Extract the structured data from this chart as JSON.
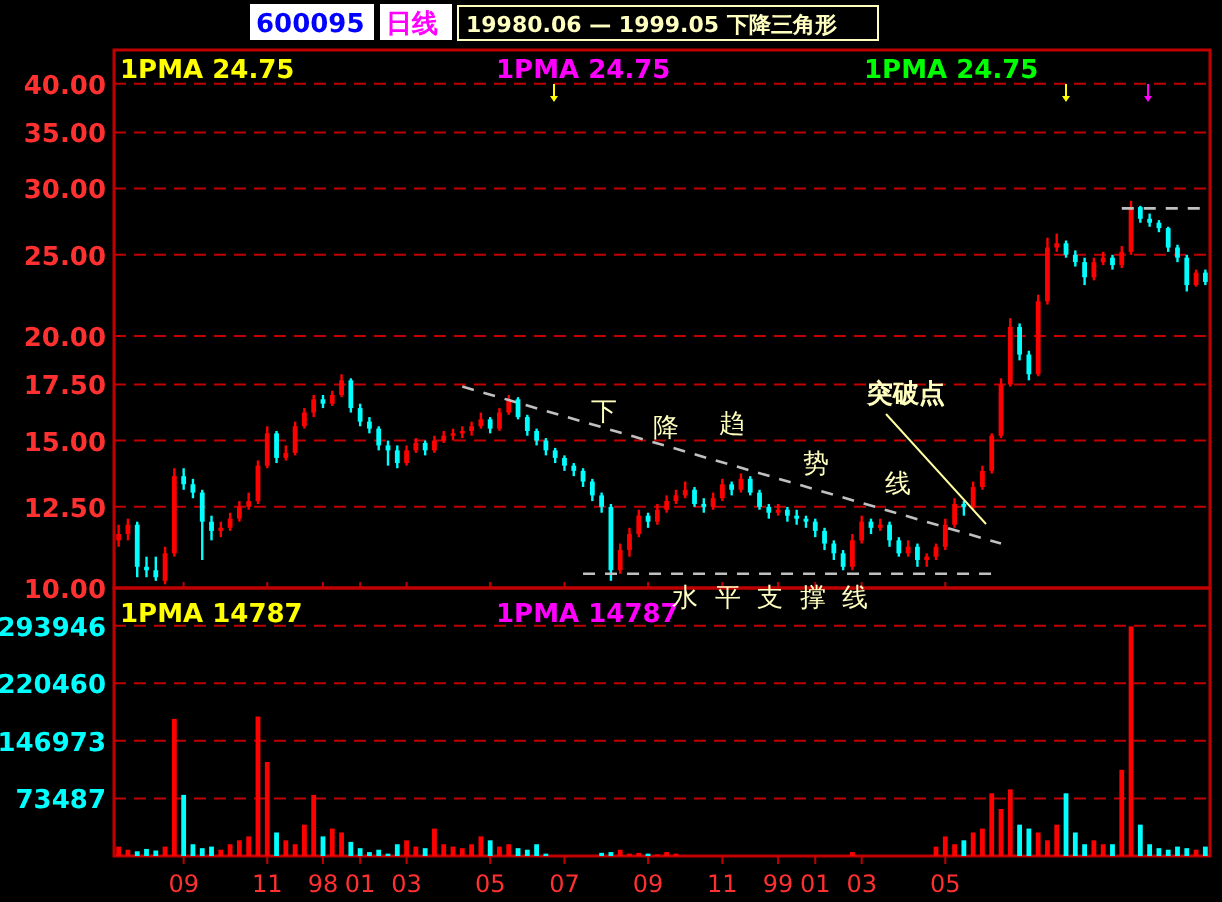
{
  "chart_data": [
    {
      "type": "candlestick",
      "title": "19980.06 — 1999.05 下降三角形",
      "log": true,
      "grid": "y",
      "tick_labels": "y",
      "ylim": [
        10,
        43.9
      ],
      "yticks": [
        {
          "value": 10,
          "label": "10.00"
        },
        {
          "value": 12.5,
          "label": "12.50"
        },
        {
          "value": 15,
          "label": "15.00"
        },
        {
          "value": 17.5,
          "label": "17.50"
        },
        {
          "value": 20,
          "label": "20.00"
        },
        {
          "value": 25,
          "label": "25.00"
        },
        {
          "value": 30,
          "label": "30.00"
        },
        {
          "value": 35,
          "label": "35.00"
        },
        {
          "value": 40,
          "label": "40.00"
        }
      ],
      "categories": [
        null,
        null,
        null,
        null,
        null,
        null,
        null,
        "09",
        null,
        null,
        null,
        null,
        null,
        null,
        null,
        null,
        "11",
        null,
        null,
        null,
        null,
        null,
        "98",
        null,
        null,
        null,
        "01",
        null,
        null,
        null,
        null,
        "03",
        null,
        null,
        null,
        null,
        null,
        null,
        null,
        null,
        "05",
        null,
        null,
        null,
        null,
        null,
        null,
        null,
        "07",
        null,
        null,
        null,
        null,
        null,
        null,
        null,
        null,
        "09",
        null,
        null,
        null,
        null,
        null,
        null,
        null,
        "11",
        null,
        null,
        null,
        null,
        null,
        "99",
        null,
        null,
        null,
        "01",
        null,
        null,
        null,
        null,
        "03",
        null,
        null,
        null,
        null,
        null,
        null,
        null,
        null,
        "05",
        null,
        null,
        null,
        null,
        null,
        null,
        null,
        null,
        null,
        null,
        null,
        null,
        null,
        null,
        null,
        null,
        null,
        null,
        null,
        null,
        null,
        null,
        null,
        null,
        null,
        null,
        null,
        null
      ],
      "ohlc": [
        [
          11.4,
          11.9,
          11.2,
          11.6
        ],
        [
          11.6,
          12.1,
          11.4,
          11.9
        ],
        [
          11.9,
          12.0,
          10.3,
          10.6
        ],
        [
          10.6,
          10.9,
          10.3,
          10.5
        ],
        [
          10.5,
          10.9,
          10.2,
          10.3
        ],
        [
          10.2,
          11.2,
          10.1,
          11.0
        ],
        [
          11.0,
          13.9,
          10.9,
          13.6
        ],
        [
          13.6,
          13.9,
          13.1,
          13.3
        ],
        [
          13.3,
          13.5,
          12.8,
          13.0
        ],
        [
          13.0,
          13.1,
          10.8,
          12.0
        ],
        [
          12.0,
          12.2,
          11.4,
          11.7
        ],
        [
          11.7,
          12.0,
          11.5,
          11.8
        ],
        [
          11.8,
          12.3,
          11.7,
          12.1
        ],
        [
          12.1,
          12.7,
          12.0,
          12.5
        ],
        [
          12.5,
          13.0,
          12.4,
          12.7
        ],
        [
          12.7,
          14.2,
          12.6,
          14.0
        ],
        [
          14.0,
          15.6,
          13.9,
          15.3
        ],
        [
          15.3,
          15.4,
          14.1,
          14.3
        ],
        [
          14.3,
          14.8,
          14.2,
          14.5
        ],
        [
          14.5,
          15.8,
          14.4,
          15.6
        ],
        [
          15.6,
          16.4,
          15.5,
          16.2
        ],
        [
          16.2,
          17.0,
          16.0,
          16.8
        ],
        [
          16.8,
          17.0,
          16.4,
          16.6
        ],
        [
          16.6,
          17.2,
          16.5,
          17.0
        ],
        [
          17.0,
          18.0,
          16.9,
          17.7
        ],
        [
          17.7,
          17.8,
          16.2,
          16.4
        ],
        [
          16.4,
          16.6,
          15.6,
          15.8
        ],
        [
          15.8,
          16.0,
          15.3,
          15.5
        ],
        [
          15.5,
          15.6,
          14.6,
          14.8
        ],
        [
          14.8,
          15.0,
          14.0,
          14.6
        ],
        [
          14.6,
          14.8,
          13.9,
          14.1
        ],
        [
          14.1,
          14.8,
          14.0,
          14.6
        ],
        [
          14.6,
          15.1,
          14.5,
          14.9
        ],
        [
          14.9,
          15.0,
          14.4,
          14.6
        ],
        [
          14.6,
          15.2,
          14.5,
          15.0
        ],
        [
          15.0,
          15.4,
          14.9,
          15.2
        ],
        [
          15.2,
          15.5,
          15.0,
          15.3
        ],
        [
          15.3,
          15.6,
          15.1,
          15.4
        ],
        [
          15.4,
          15.8,
          15.2,
          15.6
        ],
        [
          15.6,
          16.2,
          15.5,
          15.9
        ],
        [
          15.9,
          16.0,
          15.3,
          15.5
        ],
        [
          15.5,
          16.4,
          15.4,
          16.2
        ],
        [
          16.2,
          17.0,
          16.1,
          16.8
        ],
        [
          16.8,
          16.9,
          15.9,
          16.0
        ],
        [
          16.0,
          16.1,
          15.2,
          15.4
        ],
        [
          15.4,
          15.5,
          14.8,
          15.0
        ],
        [
          15.0,
          15.1,
          14.4,
          14.6
        ],
        [
          14.6,
          14.7,
          14.1,
          14.3
        ],
        [
          14.3,
          14.4,
          13.8,
          14.0
        ],
        [
          14.0,
          14.1,
          13.6,
          13.8
        ],
        [
          13.8,
          13.9,
          13.2,
          13.4
        ],
        [
          13.4,
          13.5,
          12.7,
          12.9
        ],
        [
          12.9,
          13.0,
          12.3,
          12.5
        ],
        [
          12.5,
          12.6,
          10.2,
          10.5
        ],
        [
          10.5,
          11.3,
          10.4,
          11.1
        ],
        [
          11.1,
          11.8,
          10.9,
          11.6
        ],
        [
          11.6,
          12.4,
          11.5,
          12.2
        ],
        [
          12.2,
          12.3,
          11.8,
          12.0
        ],
        [
          12.0,
          12.6,
          11.9,
          12.4
        ],
        [
          12.4,
          12.9,
          12.3,
          12.7
        ],
        [
          12.7,
          13.1,
          12.6,
          12.9
        ],
        [
          12.9,
          13.4,
          12.8,
          13.1
        ],
        [
          13.1,
          13.2,
          12.5,
          12.6
        ],
        [
          12.6,
          12.8,
          12.3,
          12.5
        ],
        [
          12.5,
          13.0,
          12.4,
          12.8
        ],
        [
          12.8,
          13.5,
          12.7,
          13.3
        ],
        [
          13.3,
          13.4,
          12.9,
          13.1
        ],
        [
          13.1,
          13.7,
          13.0,
          13.5
        ],
        [
          13.5,
          13.6,
          12.9,
          13.0
        ],
        [
          13.0,
          13.1,
          12.4,
          12.5
        ],
        [
          12.5,
          12.6,
          12.1,
          12.3
        ],
        [
          12.3,
          12.6,
          12.2,
          12.4
        ],
        [
          12.4,
          12.5,
          12.0,
          12.2
        ],
        [
          12.2,
          12.4,
          11.9,
          12.1
        ],
        [
          12.1,
          12.2,
          11.8,
          12.0
        ],
        [
          12.0,
          12.1,
          11.5,
          11.7
        ],
        [
          11.7,
          11.8,
          11.1,
          11.3
        ],
        [
          11.3,
          11.4,
          10.8,
          11.0
        ],
        [
          11.0,
          11.1,
          10.5,
          10.6
        ],
        [
          10.6,
          11.6,
          10.5,
          11.4
        ],
        [
          11.4,
          12.2,
          11.3,
          12.0
        ],
        [
          12.0,
          12.1,
          11.6,
          11.8
        ],
        [
          11.8,
          12.1,
          11.7,
          11.9
        ],
        [
          11.9,
          12.0,
          11.2,
          11.4
        ],
        [
          11.4,
          11.5,
          10.9,
          11.0
        ],
        [
          11.0,
          11.4,
          10.9,
          11.2
        ],
        [
          11.2,
          11.3,
          10.6,
          10.8
        ],
        [
          10.8,
          11.0,
          10.6,
          10.9
        ],
        [
          10.9,
          11.3,
          10.8,
          11.2
        ],
        [
          11.2,
          12.1,
          11.1,
          11.9
        ],
        [
          11.9,
          12.8,
          11.8,
          12.6
        ],
        [
          12.6,
          12.7,
          12.2,
          12.5
        ],
        [
          12.5,
          13.4,
          12.4,
          13.2
        ],
        [
          13.2,
          14.0,
          13.1,
          13.8
        ],
        [
          13.8,
          15.3,
          13.7,
          15.2
        ],
        [
          15.2,
          17.8,
          15.1,
          17.5
        ],
        [
          17.5,
          21.0,
          17.4,
          20.5
        ],
        [
          20.5,
          20.7,
          18.7,
          19.0
        ],
        [
          19.0,
          19.2,
          17.7,
          18.0
        ],
        [
          18.0,
          22.4,
          17.9,
          22.0
        ],
        [
          22.0,
          26.2,
          21.8,
          25.5
        ],
        [
          25.5,
          26.5,
          25.2,
          25.8
        ],
        [
          25.8,
          26.0,
          24.8,
          25.0
        ],
        [
          25.0,
          25.3,
          24.2,
          24.5
        ],
        [
          24.5,
          24.8,
          23.0,
          23.5
        ],
        [
          23.5,
          24.8,
          23.3,
          24.5
        ],
        [
          24.5,
          25.2,
          24.3,
          24.8
        ],
        [
          24.8,
          25.0,
          24.0,
          24.3
        ],
        [
          24.3,
          25.6,
          24.1,
          25.2
        ],
        [
          25.2,
          29.0,
          25.0,
          28.5
        ],
        [
          28.5,
          28.6,
          27.3,
          27.6
        ],
        [
          27.6,
          28.0,
          27.0,
          27.3
        ],
        [
          27.3,
          27.5,
          26.6,
          26.9
        ],
        [
          26.9,
          27.0,
          25.2,
          25.5
        ],
        [
          25.5,
          25.7,
          24.5,
          24.8
        ],
        [
          24.8,
          25.0,
          22.6,
          23.0
        ],
        [
          23.0,
          24.0,
          22.9,
          23.8
        ],
        [
          23.8,
          24.0,
          23.0,
          23.2
        ]
      ],
      "series": [
        {
          "type": "line",
          "color": "#c0c0c0",
          "line_style": "dashed",
          "values": [
            null,
            null,
            null,
            null,
            null,
            null,
            null,
            null,
            null,
            null,
            null,
            null,
            null,
            null,
            null,
            null,
            null,
            null,
            null,
            null,
            null,
            null,
            null,
            null,
            null,
            null,
            null,
            null,
            null,
            null,
            null,
            null,
            null,
            null,
            null,
            null,
            null,
            17.4,
            null,
            null,
            null,
            null,
            null,
            null,
            null,
            null,
            null,
            null,
            null,
            null,
            null,
            null,
            null,
            null,
            null,
            null,
            null,
            null,
            null,
            null,
            null,
            null,
            null,
            null,
            null,
            null,
            null,
            null,
            null,
            null,
            null,
            null,
            null,
            null,
            null,
            null,
            null,
            null,
            null,
            null,
            null,
            null,
            null,
            null,
            null,
            null,
            null,
            null,
            null,
            null,
            null,
            null,
            null,
            null,
            null,
            11.3,
            null,
            null,
            null,
            null,
            null,
            null,
            null,
            null,
            null,
            null,
            null,
            null,
            null,
            null,
            null,
            null,
            null,
            null,
            null,
            null,
            null,
            null
          ]
        },
        {
          "type": "line",
          "color": "#c0c0c0",
          "line_style": "dashed",
          "values": [
            null,
            null,
            null,
            null,
            null,
            null,
            null,
            null,
            null,
            null,
            null,
            null,
            null,
            null,
            null,
            null,
            null,
            null,
            null,
            null,
            null,
            null,
            null,
            null,
            null,
            null,
            null,
            null,
            null,
            null,
            null,
            null,
            null,
            null,
            null,
            null,
            null,
            null,
            null,
            null,
            null,
            null,
            null,
            null,
            null,
            null,
            null,
            null,
            null,
            null,
            10.4,
            null,
            null,
            null,
            null,
            null,
            null,
            null,
            null,
            null,
            null,
            null,
            null,
            null,
            null,
            null,
            null,
            null,
            null,
            null,
            null,
            null,
            null,
            null,
            null,
            null,
            null,
            null,
            null,
            null,
            null,
            null,
            null,
            null,
            null,
            null,
            null,
            null,
            null,
            null,
            null,
            null,
            null,
            null,
            10.4,
            null,
            null,
            null,
            null,
            null,
            null,
            null,
            null,
            null,
            null,
            null,
            null,
            null,
            null,
            null,
            null,
            null,
            null,
            null,
            null,
            null,
            null,
            null
          ]
        },
        {
          "type": "line",
          "color": "#c0c0c0",
          "line_style": "dashed",
          "values": [
            null,
            null,
            null,
            null,
            null,
            null,
            null,
            null,
            null,
            null,
            null,
            null,
            null,
            null,
            null,
            null,
            null,
            null,
            null,
            null,
            null,
            null,
            null,
            null,
            null,
            null,
            null,
            null,
            null,
            null,
            null,
            null,
            null,
            null,
            null,
            null,
            null,
            null,
            null,
            null,
            null,
            null,
            null,
            null,
            null,
            null,
            null,
            null,
            null,
            null,
            null,
            null,
            null,
            null,
            null,
            null,
            null,
            null,
            null,
            null,
            null,
            null,
            null,
            null,
            null,
            null,
            null,
            null,
            null,
            null,
            null,
            null,
            null,
            null,
            null,
            null,
            null,
            null,
            null,
            null,
            null,
            null,
            null,
            null,
            null,
            null,
            null,
            null,
            null,
            null,
            null,
            null,
            null,
            null,
            null,
            null,
            null,
            null,
            null,
            null,
            null,
            null,
            null,
            null,
            null,
            null,
            null,
            null,
            28.4,
            null,
            null,
            null,
            null,
            null,
            null,
            null,
            null,
            28.4
          ]
        }
      ],
      "annotations": [
        "600095",
        "日线",
        "1PMA 24.75",
        "1PMA 24.75",
        "1PMA 24.75",
        "下",
        "降",
        "趋",
        "势",
        "线",
        "突破点"
      ]
    },
    {
      "type": "bar",
      "grid": "y",
      "ylim": [
        0,
        342000
      ],
      "yticks": [
        73487,
        146973,
        220460,
        293946
      ],
      "categories": [
        null,
        null,
        null,
        null,
        null,
        null,
        null,
        "09",
        null,
        null,
        null,
        null,
        null,
        null,
        null,
        null,
        "11",
        null,
        null,
        null,
        null,
        null,
        "98",
        null,
        null,
        null,
        "01",
        null,
        null,
        null,
        null,
        "03",
        null,
        null,
        null,
        null,
        null,
        null,
        null,
        null,
        "05",
        null,
        null,
        null,
        null,
        null,
        null,
        null,
        "07",
        null,
        null,
        null,
        null,
        null,
        null,
        null,
        null,
        "09",
        null,
        null,
        null,
        null,
        null,
        null,
        null,
        "11",
        null,
        null,
        null,
        null,
        null,
        "99",
        null,
        null,
        null,
        "01",
        null,
        null,
        null,
        null,
        "03",
        null,
        null,
        null,
        null,
        null,
        null,
        null,
        null,
        "05",
        null,
        null,
        null,
        null,
        null,
        null,
        null,
        null,
        null,
        null,
        null,
        null,
        null,
        null,
        null,
        null,
        null,
        null,
        null,
        null,
        null,
        null,
        null,
        null,
        null,
        null,
        null,
        null
      ],
      "values": [
        12000,
        8000,
        6000,
        9000,
        7000,
        12000,
        175000,
        78000,
        15000,
        10000,
        12000,
        8000,
        15000,
        20000,
        25000,
        178000,
        120000,
        30000,
        20000,
        15000,
        40000,
        78000,
        25000,
        35000,
        30000,
        18000,
        10000,
        5000,
        8000,
        3000,
        15000,
        20000,
        12000,
        10000,
        35000,
        15000,
        12000,
        10000,
        15000,
        25000,
        20000,
        12000,
        15000,
        10000,
        8000,
        15000,
        3000,
        0,
        0,
        0,
        0,
        0,
        4000,
        5000,
        8000,
        3000,
        4000,
        3000,
        2000,
        5000,
        3000,
        0,
        0,
        0,
        0,
        0,
        0,
        0,
        0,
        0,
        0,
        0,
        0,
        0,
        0,
        0,
        0,
        0,
        0,
        5000,
        0,
        0,
        0,
        0,
        0,
        0,
        0,
        0,
        12000,
        25000,
        15000,
        20000,
        30000,
        35000,
        80000,
        60000,
        85000,
        40000,
        35000,
        30000,
        20000,
        40000,
        80000,
        30000,
        15000,
        20000,
        15000,
        15000,
        110000,
        293000,
        40000,
        15000,
        10000,
        8000,
        12000,
        10000,
        8000,
        12000
      ],
      "colors": [
        "#ff0000",
        "#ff0000",
        "#00ffff",
        "#00ffff",
        "#00ffff",
        "#ff0000",
        "#ff0000",
        "#00ffff",
        "#00ffff",
        "#00ffff",
        "#00ffff",
        "#ff0000",
        "#ff0000",
        "#ff0000",
        "#ff0000",
        "#ff0000",
        "#ff0000",
        "#00ffff",
        "#ff0000",
        "#ff0000",
        "#ff0000",
        "#ff0000",
        "#00ffff",
        "#ff0000",
        "#ff0000",
        "#00ffff",
        "#00ffff",
        "#00ffff",
        "#00ffff",
        "#00ffff",
        "#00ffff",
        "#ff0000",
        "#ff0000",
        "#00ffff",
        "#ff0000",
        "#ff0000",
        "#ff0000",
        "#ff0000",
        "#ff0000",
        "#ff0000",
        "#00ffff",
        "#ff0000",
        "#ff0000",
        "#00ffff",
        "#00ffff",
        "#00ffff",
        "#00ffff",
        "#00ffff",
        "#00ffff",
        "#00ffff",
        "#00ffff",
        "#00ffff",
        "#00ffff",
        "#00ffff",
        "#ff0000",
        "#ff0000",
        "#ff0000",
        "#00ffff",
        "#ff0000",
        "#ff0000",
        "#ff0000",
        "#ff0000",
        "#00ffff",
        "#00ffff",
        "#ff0000",
        "#ff0000",
        "#00ffff",
        "#ff0000",
        "#00ffff",
        "#00ffff",
        "#00ffff",
        "#ff0000",
        "#00ffff",
        "#00ffff",
        "#00ffff",
        "#00ffff",
        "#00ffff",
        "#00ffff",
        "#00ffff",
        "#ff0000",
        "#ff0000",
        "#00ffff",
        "#ff0000",
        "#00ffff",
        "#00ffff",
        "#ff0000",
        "#00ffff",
        "#ff0000",
        "#ff0000",
        "#ff0000",
        "#ff0000",
        "#00ffff",
        "#ff0000",
        "#ff0000",
        "#ff0000",
        "#ff0000",
        "#ff0000",
        "#00ffff",
        "#00ffff",
        "#ff0000",
        "#ff0000",
        "#ff0000",
        "#00ffff",
        "#00ffff",
        "#00ffff",
        "#ff0000",
        "#ff0000",
        "#00ffff",
        "#ff0000",
        "#ff0000",
        "#00ffff",
        "#00ffff",
        "#00ffff",
        "#00ffff",
        "#00ffff",
        "#00ffff",
        "#ff0000",
        "#00ffff"
      ],
      "annotations": [
        "1PMA 14787",
        "1PMA 14787",
        "水  平  支  撑  线"
      ]
    }
  ]
}
